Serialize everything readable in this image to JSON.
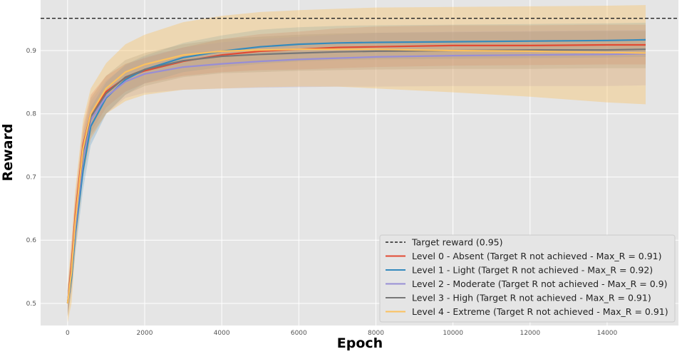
{
  "chart_data": {
    "type": "line",
    "title": "",
    "xlabel": "Epoch",
    "ylabel": "Reward",
    "xlim": [
      -700,
      15850
    ],
    "ylim": [
      0.465,
      0.98
    ],
    "xticks": [
      0,
      2000,
      4000,
      6000,
      8000,
      10000,
      12000,
      14000
    ],
    "xtick_labels": [
      "0",
      "2000",
      "4000",
      "6000",
      "8000",
      "10000",
      "12000",
      "14000"
    ],
    "yticks": [
      0.5,
      0.6,
      0.7,
      0.8,
      0.9
    ],
    "ytick_labels": [
      "0.5",
      "0.6",
      "0.7",
      "0.8",
      "0.9"
    ],
    "grid": true,
    "legend_position": "bottom-right",
    "target": {
      "label": "Target reward (0.95)",
      "value": 0.951,
      "color": "#222222"
    },
    "series": [
      {
        "name": "Level 0 - Absent (Target R not achieved - Max_R = 0.91)",
        "color": "#e24a33",
        "x": [
          0,
          100,
          200,
          400,
          600,
          1000,
          1500,
          2000,
          3000,
          4000,
          5000,
          6000,
          7000,
          8000,
          10000,
          12000,
          14000,
          15000
        ],
        "y": [
          0.5,
          0.56,
          0.64,
          0.75,
          0.8,
          0.835,
          0.857,
          0.868,
          0.883,
          0.893,
          0.899,
          0.902,
          0.905,
          0.906,
          0.908,
          0.908,
          0.909,
          0.909
        ],
        "lower": [
          0.48,
          0.53,
          0.61,
          0.72,
          0.77,
          0.81,
          0.835,
          0.848,
          0.86,
          0.866,
          0.869,
          0.87,
          0.872,
          0.874,
          0.876,
          0.877,
          0.878,
          0.878
        ],
        "upper": [
          0.52,
          0.59,
          0.67,
          0.78,
          0.83,
          0.86,
          0.879,
          0.888,
          0.905,
          0.918,
          0.926,
          0.93,
          0.935,
          0.938,
          0.94,
          0.94,
          0.941,
          0.941
        ]
      },
      {
        "name": "Level 1 - Light (Target R not achieved - Max_R = 0.92)",
        "color": "#348abd",
        "x": [
          0,
          100,
          200,
          400,
          600,
          1000,
          1500,
          2000,
          3000,
          4000,
          5000,
          6000,
          7000,
          8000,
          10000,
          12000,
          14000,
          15000
        ],
        "y": [
          0.5,
          0.54,
          0.61,
          0.71,
          0.78,
          0.825,
          0.854,
          0.87,
          0.889,
          0.899,
          0.906,
          0.91,
          0.912,
          0.913,
          0.914,
          0.915,
          0.916,
          0.917
        ],
        "lower": [
          0.48,
          0.52,
          0.58,
          0.68,
          0.75,
          0.8,
          0.83,
          0.848,
          0.866,
          0.874,
          0.879,
          0.883,
          0.885,
          0.886,
          0.887,
          0.888,
          0.889,
          0.89
        ],
        "upper": [
          0.52,
          0.57,
          0.64,
          0.74,
          0.81,
          0.85,
          0.878,
          0.892,
          0.912,
          0.924,
          0.933,
          0.937,
          0.939,
          0.94,
          0.941,
          0.942,
          0.943,
          0.944
        ]
      },
      {
        "name": "Level 2 - Moderate (Target R not achieved - Max_R = 0.9)",
        "color": "#988ed5",
        "x": [
          0,
          100,
          200,
          400,
          600,
          1000,
          1500,
          2000,
          3000,
          4000,
          5000,
          6000,
          7000,
          8000,
          10000,
          12000,
          14000,
          15000
        ],
        "y": [
          0.5,
          0.55,
          0.62,
          0.73,
          0.79,
          0.827,
          0.851,
          0.863,
          0.874,
          0.879,
          0.883,
          0.886,
          0.888,
          0.89,
          0.892,
          0.893,
          0.894,
          0.895
        ],
        "lower": [
          0.48,
          0.52,
          0.59,
          0.7,
          0.76,
          0.8,
          0.825,
          0.833,
          0.838,
          0.84,
          0.841,
          0.842,
          0.843,
          0.843,
          0.844,
          0.844,
          0.844,
          0.845
        ],
        "upper": [
          0.52,
          0.58,
          0.65,
          0.76,
          0.82,
          0.853,
          0.876,
          0.89,
          0.905,
          0.913,
          0.918,
          0.922,
          0.925,
          0.928,
          0.93,
          0.931,
          0.932,
          0.933
        ]
      },
      {
        "name": "Level 3 - High (Target R not achieved - Max_R = 0.91)",
        "color": "#777777",
        "x": [
          0,
          100,
          200,
          400,
          600,
          1000,
          1500,
          2000,
          3000,
          4000,
          5000,
          6000,
          7000,
          8000,
          10000,
          12000,
          14000,
          15000
        ],
        "y": [
          0.5,
          0.55,
          0.63,
          0.74,
          0.795,
          0.832,
          0.858,
          0.87,
          0.884,
          0.891,
          0.894,
          0.896,
          0.898,
          0.899,
          0.9,
          0.901,
          0.901,
          0.902
        ],
        "lower": [
          0.48,
          0.52,
          0.6,
          0.71,
          0.765,
          0.8,
          0.83,
          0.844,
          0.858,
          0.864,
          0.866,
          0.868,
          0.869,
          0.87,
          0.871,
          0.871,
          0.872,
          0.872
        ],
        "upper": [
          0.52,
          0.58,
          0.66,
          0.77,
          0.825,
          0.86,
          0.885,
          0.896,
          0.91,
          0.918,
          0.922,
          0.925,
          0.927,
          0.928,
          0.929,
          0.93,
          0.931,
          0.931
        ]
      },
      {
        "name": "Level 4 - Extreme (Target R not achieved - Max_R = 0.91)",
        "color": "#fbc15e",
        "x": [
          0,
          100,
          200,
          400,
          600,
          1000,
          1500,
          2000,
          3000,
          4000,
          5000,
          6000,
          7000,
          8000,
          10000,
          12000,
          14000,
          15000
        ],
        "y": [
          0.5,
          0.55,
          0.63,
          0.745,
          0.8,
          0.84,
          0.866,
          0.878,
          0.893,
          0.899,
          0.901,
          0.902,
          0.902,
          0.902,
          0.9,
          0.899,
          0.897,
          0.896
        ],
        "lower": [
          0.47,
          0.5,
          0.58,
          0.7,
          0.76,
          0.8,
          0.82,
          0.83,
          0.838,
          0.84,
          0.842,
          0.843,
          0.843,
          0.84,
          0.834,
          0.827,
          0.818,
          0.815
        ],
        "upper": [
          0.53,
          0.6,
          0.68,
          0.79,
          0.84,
          0.88,
          0.91,
          0.925,
          0.945,
          0.955,
          0.961,
          0.964,
          0.966,
          0.968,
          0.969,
          0.97,
          0.971,
          0.972
        ]
      }
    ]
  }
}
